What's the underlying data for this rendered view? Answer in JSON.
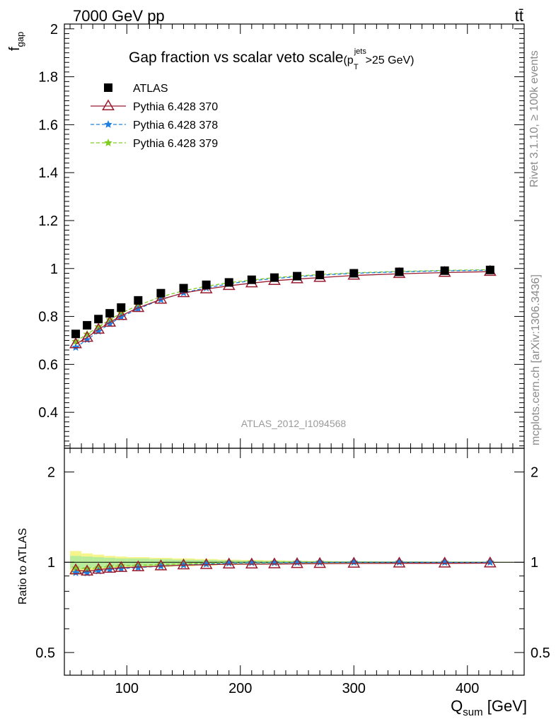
{
  "header": {
    "energy_label": "7000 GeV pp",
    "process_label": "tt̄"
  },
  "side_labels": {
    "rivet": "Rivet 3.1.10, ≥ 100k events",
    "mcplots": "mcplots.cern.ch [arXiv:1306.3436]"
  },
  "analysis_id": "ATLAS_2012_I1094568",
  "colors": {
    "atlas": "#000000",
    "py370": "#9a1b2f",
    "py378": "#1f7fe0",
    "py379": "#7fcc1f",
    "band_yellow": "#f5f58c",
    "band_green": "#b9ec9a"
  },
  "chart_data": {
    "type": "scatter",
    "title": "Gap fraction vs scalar veto scale",
    "title_suffix_base": "(p",
    "title_suffix_sup": "jets",
    "title_suffix_sub": "T",
    "title_suffix_rest": ">25 GeV)",
    "ylabel_main": "f",
    "ylabel_main_sub": "gap",
    "ylabel_ratio": "Ratio to ATLAS",
    "xlabel": "Q",
    "xlabel_sub": "sum",
    "xlabel_unit": " [GeV]",
    "xlim": [
      45,
      450
    ],
    "ylim_main": [
      0.25,
      2.02
    ],
    "ylim_ratio": [
      0.42,
      2.4
    ],
    "ratio_log_scale": true,
    "x_ticks": [
      "100",
      "200",
      "300",
      "400"
    ],
    "y_ticks_main": [
      "0.4",
      "0.6",
      "0.8",
      "1",
      "1.2",
      "1.4",
      "1.6",
      "1.8",
      "2"
    ],
    "y_ticks_ratio": [
      "0.5",
      "1",
      "2"
    ],
    "legend_position": "top-left",
    "x": [
      55,
      65,
      75,
      85,
      95,
      110,
      130,
      150,
      170,
      190,
      210,
      230,
      250,
      270,
      300,
      340,
      380,
      420
    ],
    "series": [
      {
        "name": "ATLAS",
        "marker": "square",
        "values": [
          0.727,
          0.763,
          0.789,
          0.813,
          0.837,
          0.867,
          0.897,
          0.918,
          0.932,
          0.942,
          0.953,
          0.962,
          0.968,
          0.973,
          0.98,
          0.986,
          0.991,
          0.994
        ]
      },
      {
        "name": "Pythia 6.428 370",
        "marker": "open-triangle",
        "values": [
          0.685,
          0.712,
          0.746,
          0.775,
          0.803,
          0.836,
          0.871,
          0.898,
          0.914,
          0.928,
          0.939,
          0.949,
          0.956,
          0.962,
          0.971,
          0.978,
          0.983,
          0.987
        ]
      },
      {
        "name": "Pythia 6.428 378",
        "marker": "star",
        "values": [
          0.671,
          0.703,
          0.738,
          0.769,
          0.797,
          0.832,
          0.87,
          0.899,
          0.919,
          0.936,
          0.949,
          0.958,
          0.966,
          0.972,
          0.98,
          0.986,
          0.99,
          0.993
        ]
      },
      {
        "name": "Pythia 6.428 379",
        "marker": "star",
        "values": [
          0.696,
          0.726,
          0.757,
          0.786,
          0.814,
          0.846,
          0.882,
          0.907,
          0.926,
          0.941,
          0.952,
          0.962,
          0.969,
          0.975,
          0.982,
          0.988,
          0.992,
          0.995
        ]
      }
    ],
    "ratio_series": [
      {
        "name": "Pythia 6.428 370",
        "values": [
          0.942,
          0.933,
          0.946,
          0.953,
          0.959,
          0.964,
          0.971,
          0.978,
          0.981,
          0.985,
          0.985,
          0.986,
          0.988,
          0.989,
          0.991,
          0.992,
          0.992,
          0.993
        ]
      },
      {
        "name": "Pythia 6.428 378",
        "values": [
          0.923,
          0.921,
          0.935,
          0.946,
          0.952,
          0.96,
          0.97,
          0.979,
          0.986,
          0.994,
          0.996,
          0.996,
          0.998,
          0.999,
          1.0,
          1.0,
          0.999,
          0.999
        ]
      },
      {
        "name": "Pythia 6.428 379",
        "values": [
          0.957,
          0.951,
          0.959,
          0.967,
          0.973,
          0.976,
          0.983,
          0.988,
          0.994,
          0.999,
          0.999,
          1.0,
          1.001,
          1.002,
          1.002,
          1.002,
          1.001,
          1.001
        ]
      }
    ],
    "ratio_band": {
      "x_edges": [
        50,
        60,
        70,
        80,
        90,
        100,
        120,
        140,
        160,
        180,
        200,
        220,
        240,
        260,
        280,
        320,
        360,
        400,
        440
      ],
      "yellow_half_width": [
        0.09,
        0.07,
        0.06,
        0.05,
        0.045,
        0.04,
        0.035,
        0.03,
        0.025,
        0.02,
        0.018,
        0.015,
        0.012,
        0.01,
        0.008,
        0.006,
        0.005,
        0.004
      ],
      "green_half_width": [
        0.05,
        0.045,
        0.04,
        0.035,
        0.03,
        0.03,
        0.025,
        0.02,
        0.018,
        0.015,
        0.012,
        0.01,
        0.009,
        0.008,
        0.006,
        0.005,
        0.004,
        0.003
      ]
    }
  }
}
